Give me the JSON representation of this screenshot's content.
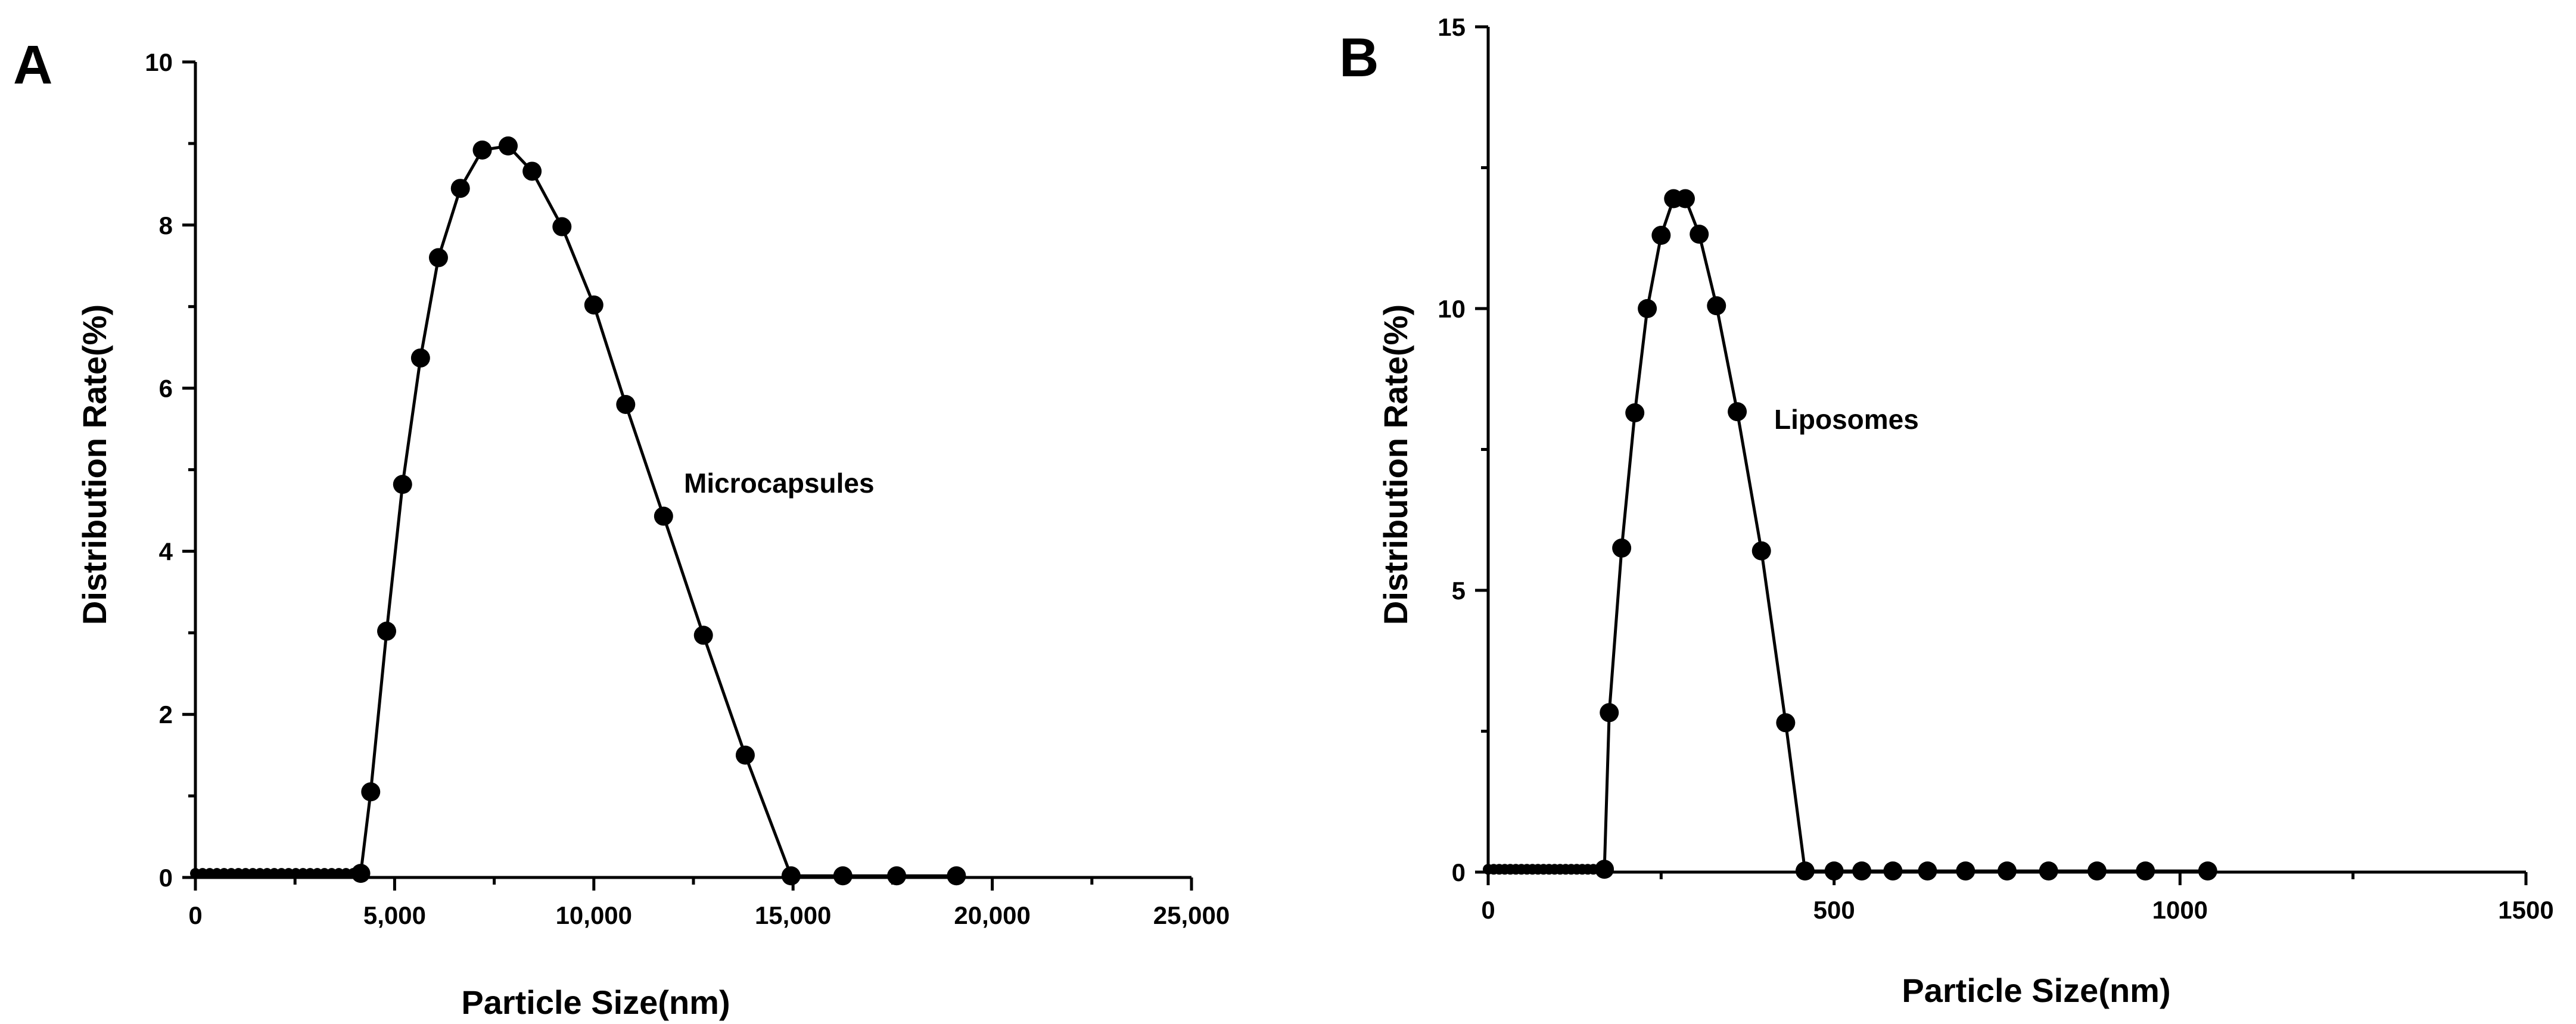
{
  "chart_data": [
    {
      "panel": "A",
      "type": "line",
      "title": "",
      "xlabel": "Particle Size(nm)",
      "ylabel": "Distribution Rate(%)",
      "xlim": [
        0,
        25000
      ],
      "ylim": [
        0,
        10
      ],
      "xticks": [
        0,
        5000,
        10000,
        15000,
        20000,
        25000
      ],
      "xtick_labels": [
        "0",
        "5,000",
        "10,000",
        "15,000",
        "20,000",
        "25,000"
      ],
      "yticks": [
        0,
        2,
        4,
        6,
        8,
        10
      ],
      "ytick_labels": [
        "0",
        "2",
        "4",
        "6",
        "8",
        "10"
      ],
      "annotation": "Microcapsules",
      "baseline_points": [
        0,
        180,
        360,
        540,
        720,
        900,
        1080,
        1260,
        1440,
        1620,
        1800,
        1980,
        2160,
        2340,
        2520,
        2700,
        2880,
        3060,
        3240,
        3420,
        3600,
        3780,
        3960,
        4140
      ],
      "series": [
        {
          "name": "Microcapsules",
          "x": [
            0,
            4150,
            4400,
            4800,
            5200,
            5650,
            6100,
            6650,
            7200,
            7850,
            8450,
            9200,
            10000,
            10800,
            11750,
            12750,
            13800,
            14950,
            16250,
            17600,
            19100
          ],
          "y": [
            0.05,
            0.05,
            1.05,
            3.02,
            4.82,
            6.37,
            7.6,
            8.45,
            8.92,
            8.97,
            8.66,
            7.98,
            7.02,
            5.8,
            4.43,
            2.97,
            1.5,
            0.02,
            0.02,
            0.02,
            0.02
          ]
        }
      ]
    },
    {
      "panel": "B",
      "type": "line",
      "title": "",
      "xlabel": "Particle Size(nm)",
      "ylabel": "Distribution Rate(%)",
      "xlim": [
        0,
        1500
      ],
      "ylim": [
        0,
        15
      ],
      "xticks": [
        0,
        500,
        1000,
        1500
      ],
      "xtick_labels": [
        "0",
        "500",
        "1000",
        "1500"
      ],
      "yticks": [
        0,
        5,
        10,
        15
      ],
      "ytick_labels": [
        "0",
        "5",
        "10",
        "15"
      ],
      "annotation": "Liposomes",
      "baseline_points": [
        0,
        8,
        16,
        24,
        32,
        40,
        48,
        56,
        64,
        72,
        80,
        88,
        96,
        104,
        112,
        120,
        128,
        136,
        144,
        152,
        160,
        168
      ],
      "series": [
        {
          "name": "Liposomes",
          "x": [
            0,
            168,
            175,
            193,
            212,
            230,
            250,
            268,
            285,
            305,
            330,
            360,
            395,
            430,
            458,
            500,
            540,
            585,
            635,
            690,
            750,
            810,
            880,
            950,
            1040
          ],
          "y": [
            0.05,
            0.05,
            2.83,
            5.75,
            8.15,
            10.0,
            11.3,
            11.95,
            11.95,
            11.32,
            10.05,
            8.17,
            5.7,
            2.65,
            0.02,
            0.02,
            0.02,
            0.02,
            0.02,
            0.02,
            0.02,
            0.02,
            0.02,
            0.02,
            0.02
          ]
        }
      ]
    }
  ]
}
